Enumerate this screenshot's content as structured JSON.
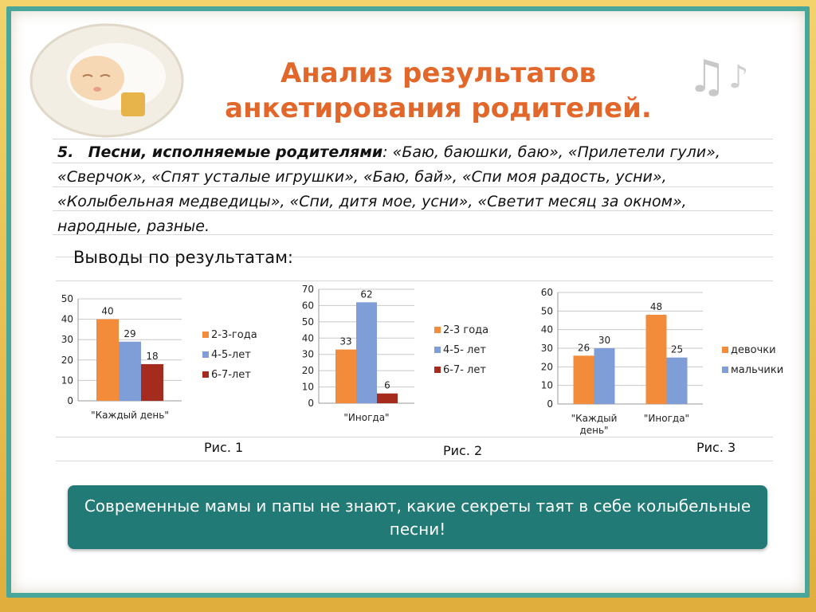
{
  "title": {
    "line1": "Анализ результатов",
    "line2": "анкетирования родителей."
  },
  "songs": {
    "number": "5.",
    "heading": "Песни, исполняемые родителями",
    "text": ": «Баю, баюшки, баю», «Прилетели гули», «Сверчок», «Спят усталые игрушки», «Баю, бай», «Спи моя радость, усни», «Колыбельная медведицы», «Спи, дитя мое, усни», «Светит месяц за окном», народные, разные."
  },
  "conclusions_label": "Выводы по результатам:",
  "figures": {
    "fig1": "Рис. 1",
    "fig2": "Рис. 2",
    "fig3": "Рис. 3"
  },
  "banner": "Современные мамы и папы не знают, какие секреты таят в себе колыбельные песни!",
  "colors": {
    "orange": "#f28c3a",
    "blue": "#7f9ed8",
    "red": "#a62b1f",
    "title": "#e2672a",
    "banner": "#217a76"
  },
  "chart_data": [
    {
      "type": "bar",
      "categories": [
        "\"Каждый день\""
      ],
      "series": [
        {
          "name": "2-3-года",
          "values": [
            40
          ]
        },
        {
          "name": "4-5-лет",
          "values": [
            29
          ]
        },
        {
          "name": "6-7-лет",
          "values": [
            18
          ]
        }
      ],
      "ylim": [
        0,
        50
      ],
      "yticks": [
        0,
        10,
        20,
        30,
        40,
        50
      ],
      "grid": true,
      "legend": "right"
    },
    {
      "type": "bar",
      "categories": [
        "\"Иногда\""
      ],
      "series": [
        {
          "name": "2-3 года",
          "values": [
            33
          ]
        },
        {
          "name": "4-5- лет",
          "values": [
            62
          ]
        },
        {
          "name": "6-7- лет",
          "values": [
            6
          ]
        }
      ],
      "ylim": [
        0,
        70
      ],
      "yticks": [
        0,
        10,
        20,
        30,
        40,
        50,
        60,
        70
      ],
      "grid": true,
      "legend": "right"
    },
    {
      "type": "bar",
      "categories": [
        "\"Каждый день\"",
        "\"Иногда\""
      ],
      "series": [
        {
          "name": "девочки",
          "values": [
            26,
            48
          ]
        },
        {
          "name": "мальчики",
          "values": [
            30,
            25
          ]
        }
      ],
      "ylim": [
        0,
        60
      ],
      "yticks": [
        0,
        10,
        20,
        30,
        40,
        50,
        60
      ],
      "grid": true,
      "legend": "right"
    }
  ]
}
